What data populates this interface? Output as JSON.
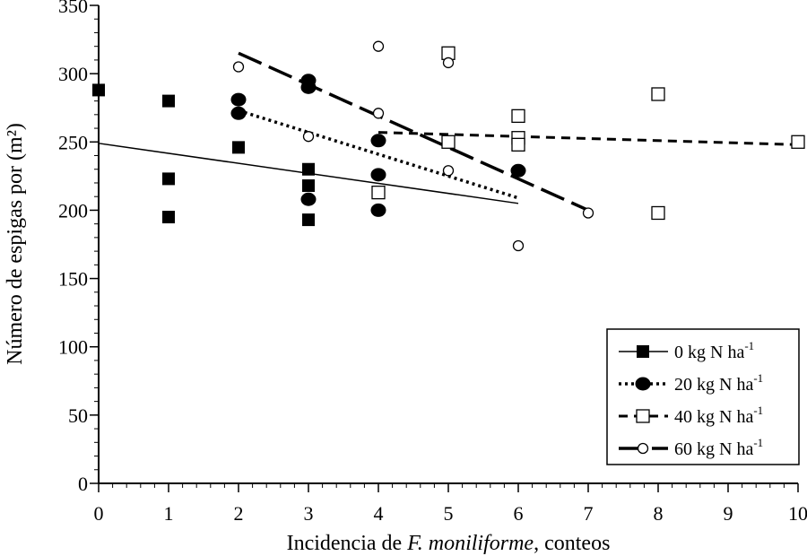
{
  "chart_data": {
    "type": "scatter",
    "xlabel": {
      "prefix": "Incidencia de ",
      "italic": "F. moniliforme",
      "suffix": ", conteos"
    },
    "ylabel": "Número de espigas por (m²)",
    "xlim": [
      0,
      10
    ],
    "ylim": [
      0,
      350
    ],
    "xticks": [
      0,
      1,
      2,
      3,
      4,
      5,
      6,
      7,
      8,
      9,
      10
    ],
    "yticks": [
      0,
      50,
      100,
      150,
      200,
      250,
      300,
      350
    ],
    "grid": false,
    "legend_position": "bottom-right",
    "series": [
      {
        "name": "0 kg N ha",
        "superscript": "-1",
        "marker": "filled-square",
        "line_style": "solid-thin",
        "points": [
          [
            0,
            288
          ],
          [
            1,
            280
          ],
          [
            1,
            223
          ],
          [
            1,
            195
          ],
          [
            2,
            246
          ],
          [
            3,
            230
          ],
          [
            3,
            218
          ],
          [
            3,
            193
          ]
        ],
        "fit": [
          [
            0,
            249
          ],
          [
            6,
            205
          ]
        ]
      },
      {
        "name": "20 kg N ha",
        "superscript": "-1",
        "marker": "filled-circle",
        "line_style": "dotted",
        "points": [
          [
            2,
            281
          ],
          [
            2,
            271
          ],
          [
            3,
            295
          ],
          [
            3,
            290
          ],
          [
            3,
            208
          ],
          [
            4,
            251
          ],
          [
            4,
            226
          ],
          [
            4,
            200
          ],
          [
            6,
            229
          ]
        ],
        "fit": [
          [
            2,
            273
          ],
          [
            6,
            209
          ]
        ]
      },
      {
        "name": "40 kg N ha",
        "superscript": "-1",
        "marker": "open-square",
        "line_style": "dashed",
        "points": [
          [
            4,
            213
          ],
          [
            5,
            315
          ],
          [
            5,
            250
          ],
          [
            6,
            269
          ],
          [
            6,
            253
          ],
          [
            6,
            248
          ],
          [
            8,
            285
          ],
          [
            8,
            198
          ],
          [
            10,
            250
          ]
        ],
        "fit": [
          [
            4,
            257
          ],
          [
            10,
            248
          ]
        ]
      },
      {
        "name": "60 kg N ha",
        "superscript": "-1",
        "marker": "open-circle",
        "line_style": "long-dash",
        "points": [
          [
            2,
            305
          ],
          [
            3,
            254
          ],
          [
            4,
            320
          ],
          [
            4,
            271
          ],
          [
            5,
            308
          ],
          [
            5,
            229
          ],
          [
            6,
            174
          ],
          [
            7,
            198
          ]
        ],
        "fit": [
          [
            2,
            315
          ],
          [
            7,
            200
          ]
        ]
      }
    ]
  }
}
